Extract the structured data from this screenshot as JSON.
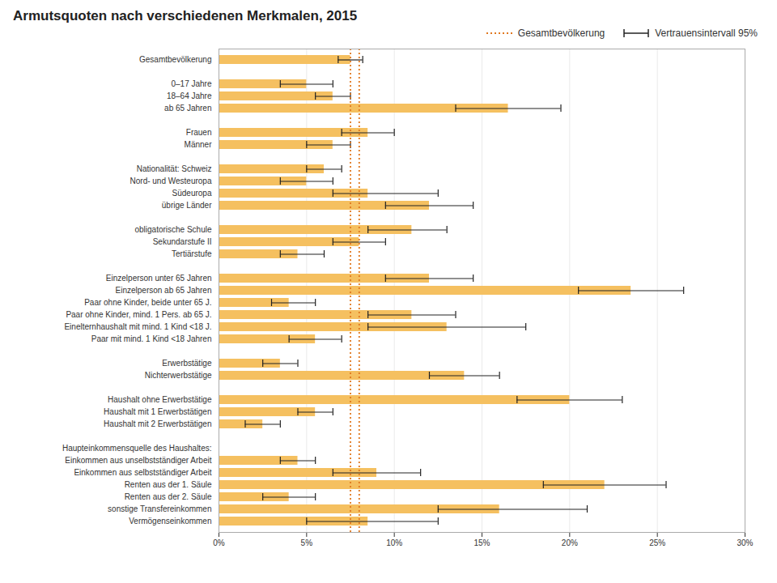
{
  "chart_data": {
    "type": "bar",
    "orientation": "horizontal",
    "title": "Armutsquoten nach verschiedenen Merkmalen, 2015",
    "categories": [
      "Gesamtbevölkerung",
      null,
      "0–17 Jahre",
      "18–64 Jahre",
      "ab 65 Jahren",
      null,
      "Frauen",
      "Männer",
      null,
      "Nationalität: Schweiz",
      "Nord- und Westeuropa",
      "Südeuropa",
      "übrige Länder",
      null,
      "obligatorische Schule",
      "Sekundarstufe II",
      "Tertiärstufe",
      null,
      "Einzelperson unter 65 Jahren",
      "Einzelperson ab 65 Jahren",
      "Paar ohne Kinder, beide unter 65 J.",
      "Paar ohne Kinder, mind. 1 Pers. ab 65 J.",
      "Einelternhaushalt mit mind. 1 Kind <18 J.",
      "Paar mit mind. 1 Kind <18 Jahren",
      null,
      "Erwerbstätige",
      "Nichterwerbstätige",
      null,
      "Haushalt ohne Erwerbstätige",
      "Haushalt mit 1 Erwerbstätigen",
      "Haushalt mit 2 Erwerbstätigen",
      null,
      "Haupteinkommensquelle des Haushaltes:",
      "Einkommen aus unselbstständiger Arbeit",
      "Einkommen aus selbstständiger Arbeit",
      "Renten aus der 1. Säule",
      "Renten aus der 2. Säule",
      "sonstige Transfereinkommen",
      "Vermögenseinkommen"
    ],
    "values": [
      7.5,
      null,
      5.0,
      6.5,
      16.5,
      null,
      8.5,
      6.5,
      null,
      6.0,
      5.0,
      8.5,
      12.0,
      null,
      11.0,
      8.0,
      4.5,
      null,
      12.0,
      23.5,
      4.0,
      11.0,
      13.0,
      5.5,
      null,
      3.5,
      14.0,
      null,
      20.0,
      5.5,
      2.5,
      null,
      null,
      4.5,
      9.0,
      22.0,
      4.0,
      16.0,
      8.5
    ],
    "error_bars": {
      "name": "Vertrauensintervall 95%",
      "lower": [
        6.8,
        null,
        3.5,
        5.5,
        13.5,
        null,
        7.0,
        5.0,
        null,
        5.0,
        3.5,
        6.5,
        9.5,
        null,
        8.5,
        6.5,
        3.5,
        null,
        9.5,
        20.5,
        3.0,
        8.5,
        8.5,
        4.0,
        null,
        2.5,
        12.0,
        null,
        17.0,
        4.5,
        1.5,
        null,
        null,
        3.5,
        6.5,
        18.5,
        2.5,
        12.5,
        5.0
      ],
      "upper": [
        8.2,
        null,
        6.5,
        7.5,
        19.5,
        null,
        10.0,
        7.5,
        null,
        7.0,
        6.5,
        12.5,
        14.5,
        null,
        13.0,
        9.5,
        6.0,
        null,
        14.5,
        26.5,
        5.5,
        13.5,
        17.5,
        7.0,
        null,
        4.5,
        16.0,
        null,
        23.0,
        6.5,
        3.5,
        null,
        null,
        5.5,
        11.5,
        25.5,
        5.5,
        21.0,
        12.5
      ]
    },
    "reference_lines": {
      "name": "Gesamtbevölkerung",
      "color": "#e07820",
      "values": [
        7.5,
        8.0
      ]
    },
    "color": "#f5c060",
    "xlim": [
      0,
      30
    ],
    "xticks": [
      {
        "value": 0,
        "label": "0%"
      },
      {
        "value": 5,
        "label": "5%"
      },
      {
        "value": 10,
        "label": "10%"
      },
      {
        "value": 15,
        "label": "15%"
      },
      {
        "value": 20,
        "label": "20%"
      },
      {
        "value": 25,
        "label": "25%"
      },
      {
        "value": 30,
        "label": "30%"
      }
    ],
    "grid": true,
    "legend": "top-right"
  }
}
